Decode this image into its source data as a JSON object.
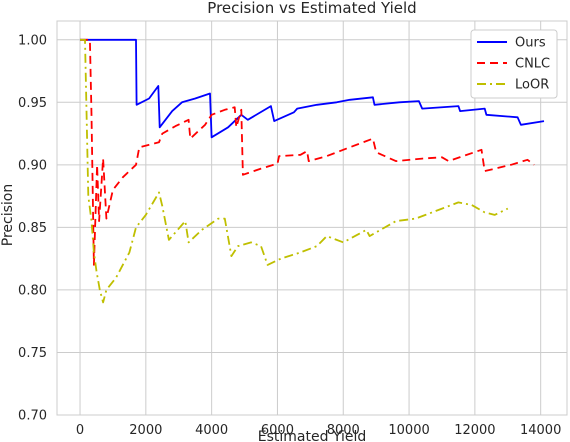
{
  "chart_data": {
    "type": "line",
    "title": "Precision vs Estimated Yield",
    "xlabel": "Estimated Yield",
    "ylabel": "Precision",
    "xlim": [
      -700,
      14800
    ],
    "ylim": [
      0.7,
      1.015
    ],
    "xticks": [
      0,
      2000,
      4000,
      6000,
      8000,
      10000,
      12000,
      14000
    ],
    "yticks": [
      0.7,
      0.75,
      0.8,
      0.85,
      0.9,
      0.95,
      1.0
    ],
    "xtick_labels": [
      "0",
      "2000",
      "4000",
      "6000",
      "8000",
      "10000",
      "12000",
      "14000"
    ],
    "ytick_labels": [
      "0.70",
      "0.75",
      "0.80",
      "0.85",
      "0.90",
      "0.95",
      "1.00"
    ],
    "grid": true,
    "legend_position": "top-right",
    "series": [
      {
        "name": "Ours",
        "color": "#0000ff",
        "dash": "solid",
        "points": [
          [
            0,
            1.0
          ],
          [
            1700,
            1.0
          ],
          [
            1720,
            0.948
          ],
          [
            2100,
            0.953
          ],
          [
            2380,
            0.963
          ],
          [
            2420,
            0.93
          ],
          [
            2800,
            0.943
          ],
          [
            3100,
            0.95
          ],
          [
            3500,
            0.953
          ],
          [
            3950,
            0.957
          ],
          [
            4000,
            0.922
          ],
          [
            4500,
            0.93
          ],
          [
            4900,
            0.94
          ],
          [
            5100,
            0.936
          ],
          [
            5800,
            0.947
          ],
          [
            5900,
            0.935
          ],
          [
            6500,
            0.942
          ],
          [
            6600,
            0.945
          ],
          [
            7200,
            0.948
          ],
          [
            7800,
            0.95
          ],
          [
            8200,
            0.952
          ],
          [
            8900,
            0.954
          ],
          [
            8950,
            0.948
          ],
          [
            9700,
            0.95
          ],
          [
            10300,
            0.951
          ],
          [
            10400,
            0.945
          ],
          [
            11500,
            0.947
          ],
          [
            11550,
            0.943
          ],
          [
            12300,
            0.945
          ],
          [
            12350,
            0.94
          ],
          [
            13300,
            0.938
          ],
          [
            13400,
            0.932
          ],
          [
            14100,
            0.935
          ]
        ]
      },
      {
        "name": "CNLC",
        "color": "#ff0000",
        "dash": "8,5",
        "points": [
          [
            0,
            1.0
          ],
          [
            300,
            1.0
          ],
          [
            350,
            0.94
          ],
          [
            420,
            0.82
          ],
          [
            520,
            0.9
          ],
          [
            580,
            0.855
          ],
          [
            700,
            0.905
          ],
          [
            800,
            0.857
          ],
          [
            1000,
            0.88
          ],
          [
            1300,
            0.89
          ],
          [
            1700,
            0.9
          ],
          [
            1800,
            0.914
          ],
          [
            2400,
            0.918
          ],
          [
            2500,
            0.925
          ],
          [
            2900,
            0.931
          ],
          [
            3300,
            0.936
          ],
          [
            3350,
            0.921
          ],
          [
            3800,
            0.932
          ],
          [
            4000,
            0.94
          ],
          [
            4400,
            0.944
          ],
          [
            4700,
            0.946
          ],
          [
            4750,
            0.93
          ],
          [
            4900,
            0.944
          ],
          [
            4950,
            0.892
          ],
          [
            5500,
            0.897
          ],
          [
            6000,
            0.901
          ],
          [
            6050,
            0.907
          ],
          [
            6700,
            0.908
          ],
          [
            6900,
            0.911
          ],
          [
            6950,
            0.903
          ],
          [
            7500,
            0.907
          ],
          [
            8200,
            0.914
          ],
          [
            8900,
            0.921
          ],
          [
            9000,
            0.91
          ],
          [
            9600,
            0.903
          ],
          [
            10400,
            0.905
          ],
          [
            11000,
            0.906
          ],
          [
            11200,
            0.903
          ],
          [
            12200,
            0.912
          ],
          [
            12300,
            0.895
          ],
          [
            13100,
            0.9
          ],
          [
            13600,
            0.904
          ],
          [
            13800,
            0.9
          ]
        ]
      },
      {
        "name": "LoOR",
        "color": "#bfbf00",
        "dash": "9,4,2,4",
        "points": [
          [
            0,
            1.0
          ],
          [
            150,
            1.0
          ],
          [
            250,
            0.875
          ],
          [
            350,
            0.855
          ],
          [
            420,
            0.83
          ],
          [
            500,
            0.815
          ],
          [
            600,
            0.8
          ],
          [
            700,
            0.79
          ],
          [
            800,
            0.8
          ],
          [
            1100,
            0.81
          ],
          [
            1500,
            0.83
          ],
          [
            1700,
            0.85
          ],
          [
            2000,
            0.86
          ],
          [
            2400,
            0.878
          ],
          [
            2500,
            0.867
          ],
          [
            2700,
            0.84
          ],
          [
            3200,
            0.855
          ],
          [
            3300,
            0.838
          ],
          [
            3700,
            0.848
          ],
          [
            4200,
            0.857
          ],
          [
            4400,
            0.857
          ],
          [
            4600,
            0.827
          ],
          [
            4800,
            0.835
          ],
          [
            5200,
            0.838
          ],
          [
            5500,
            0.835
          ],
          [
            5700,
            0.82
          ],
          [
            6100,
            0.825
          ],
          [
            6700,
            0.83
          ],
          [
            7200,
            0.835
          ],
          [
            7500,
            0.843
          ],
          [
            8000,
            0.838
          ],
          [
            8700,
            0.848
          ],
          [
            8800,
            0.843
          ],
          [
            9600,
            0.855
          ],
          [
            10200,
            0.857
          ],
          [
            10500,
            0.86
          ],
          [
            11000,
            0.865
          ],
          [
            11500,
            0.87
          ],
          [
            11900,
            0.868
          ],
          [
            12300,
            0.862
          ],
          [
            12600,
            0.86
          ],
          [
            13000,
            0.865
          ]
        ]
      }
    ]
  }
}
